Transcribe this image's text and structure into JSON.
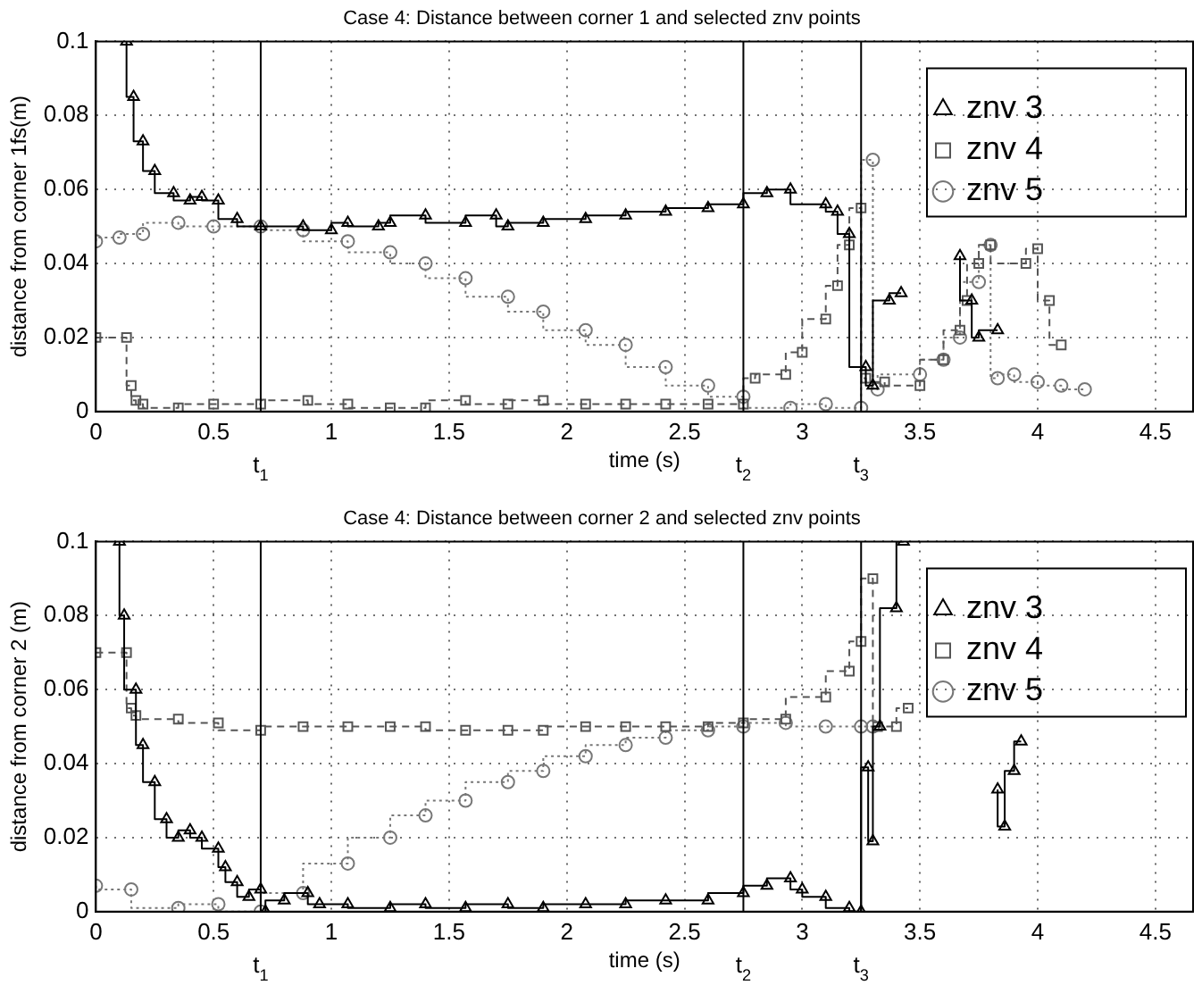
{
  "chart_data": [
    {
      "type": "step",
      "title": "Case 4: Distance between corner 1 and selected znv points",
      "xlabel": "time (s)",
      "ylabel": "distance from corner 1fs(m)",
      "xlim": [
        0,
        4.66
      ],
      "xticks": [
        0,
        0.5,
        1,
        1.5,
        2,
        2.5,
        3,
        3.5,
        4,
        4.5
      ],
      "ylim": [
        0,
        0.1
      ],
      "yticks": [
        0,
        0.02,
        0.04,
        0.06,
        0.08,
        0.1
      ],
      "grid": true,
      "legend": "top right",
      "ref_lines": [
        {
          "axis": "x",
          "value": 0.7,
          "label": "t$_{1}$",
          "color": "#000000"
        },
        {
          "axis": "x",
          "value": 2.75,
          "label": "t$_{2}$",
          "color": "#000000"
        },
        {
          "axis": "x",
          "value": 3.25,
          "label": "t$_{3}$",
          "color": "#000000"
        }
      ],
      "series": [
        {
          "name": "znv 3",
          "color": "#000000",
          "marker": "triangle",
          "line_style": "solid",
          "x": [
            0.13,
            0.16,
            0.2,
            0.25,
            0.33,
            0.4,
            0.45,
            0.52,
            0.6,
            0.7,
            0.88,
            1.0,
            1.07,
            1.2,
            1.25,
            1.4,
            1.57,
            1.7,
            1.75,
            1.9,
            2.08,
            2.25,
            2.42,
            2.6,
            2.75,
            2.85,
            2.95,
            3.1,
            3.15,
            3.2,
            3.27,
            3.3,
            3.37,
            3.42,
            3.45,
            3.67,
            3.72,
            3.75,
            3.83
          ],
          "values": [
            0.1,
            0.085,
            0.073,
            0.065,
            0.059,
            0.057,
            0.058,
            0.057,
            0.052,
            0.05,
            0.05,
            0.049,
            0.051,
            0.05,
            0.051,
            0.053,
            0.051,
            0.053,
            0.05,
            0.051,
            0.052,
            0.053,
            0.054,
            0.055,
            0.056,
            0.059,
            0.06,
            0.056,
            0.054,
            0.048,
            0.012,
            0.007,
            0.03,
            0.032,
            null,
            0.042,
            0.03,
            0.02,
            0.022
          ]
        },
        {
          "name": "znv 4",
          "color": "#555555",
          "marker": "square",
          "line_style": "dashed",
          "x": [
            0,
            0.13,
            0.15,
            0.17,
            0.2,
            0.35,
            0.5,
            0.7,
            0.9,
            1.07,
            1.25,
            1.4,
            1.57,
            1.75,
            1.9,
            2.08,
            2.25,
            2.42,
            2.6,
            2.75,
            2.8,
            2.93,
            3.0,
            3.1,
            3.15,
            3.2,
            3.25,
            3.27,
            3.35,
            3.5,
            3.6,
            3.67,
            3.7,
            3.75,
            3.8,
            3.95,
            4.0,
            4.05,
            4.1
          ],
          "values": [
            0.02,
            0.02,
            0.007,
            0.003,
            0.002,
            0.001,
            0.002,
            0.002,
            0.003,
            0.002,
            0.001,
            0.001,
            0.003,
            0.002,
            0.003,
            0.002,
            0.002,
            0.002,
            0.002,
            0.002,
            0.009,
            0.01,
            0.016,
            0.025,
            0.034,
            0.045,
            0.055,
            0.009,
            0.008,
            0.007,
            0.014,
            0.022,
            0.03,
            0.04,
            0.045,
            0.04,
            0.044,
            0.03,
            0.018
          ]
        },
        {
          "name": "znv 5",
          "color": "#777777",
          "marker": "circle",
          "line_style": "dotted",
          "x": [
            0,
            0.1,
            0.2,
            0.35,
            0.5,
            0.7,
            0.88,
            1.07,
            1.25,
            1.4,
            1.57,
            1.75,
            1.9,
            2.08,
            2.25,
            2.42,
            2.6,
            2.75,
            2.95,
            3.1,
            3.25,
            3.3,
            3.32,
            3.5,
            3.6,
            3.67,
            3.75,
            3.8,
            3.83,
            3.9,
            4.0,
            4.1,
            4.2
          ],
          "values": [
            0.046,
            0.047,
            0.048,
            0.051,
            0.05,
            0.05,
            0.049,
            0.046,
            0.043,
            0.04,
            0.036,
            0.031,
            0.027,
            0.022,
            0.018,
            0.012,
            0.007,
            0.004,
            0.001,
            0.002,
            0.001,
            0.068,
            0.006,
            0.01,
            0.014,
            0.02,
            0.035,
            0.045,
            0.009,
            0.01,
            0.008,
            0.007,
            0.006
          ]
        }
      ]
    },
    {
      "type": "step",
      "title": "Case 4: Distance between corner 2 and selected znv points",
      "xlabel": "time (s)",
      "ylabel": "distance from corner 2 (m)",
      "xlim": [
        0,
        4.66
      ],
      "xticks": [
        0,
        0.5,
        1,
        1.5,
        2,
        2.5,
        3,
        3.5,
        4,
        4.5
      ],
      "ylim": [
        0,
        0.1
      ],
      "yticks": [
        0,
        0.02,
        0.04,
        0.06,
        0.08,
        0.1
      ],
      "grid": true,
      "legend": "top right",
      "ref_lines": [
        {
          "axis": "x",
          "value": 0.7,
          "label": "t$_{1}$",
          "color": "#000000"
        },
        {
          "axis": "x",
          "value": 2.75,
          "label": "t$_{2}$",
          "color": "#000000"
        },
        {
          "axis": "x",
          "value": 3.25,
          "label": "t$_{3}$",
          "color": "#000000"
        }
      ],
      "series": [
        {
          "name": "znv 3",
          "color": "#000000",
          "marker": "triangle",
          "line_style": "solid",
          "x": [
            0.1,
            0.12,
            0.17,
            0.2,
            0.25,
            0.3,
            0.35,
            0.4,
            0.45,
            0.52,
            0.55,
            0.6,
            0.65,
            0.7,
            0.72,
            0.8,
            0.9,
            0.95,
            1.07,
            1.25,
            1.4,
            1.57,
            1.75,
            1.9,
            2.08,
            2.25,
            2.42,
            2.6,
            2.75,
            2.85,
            2.95,
            3.0,
            3.1,
            3.2,
            3.25,
            3.28,
            3.3,
            3.33,
            3.4,
            3.43,
            3.46,
            3.83,
            3.86,
            3.9,
            3.93
          ],
          "values": [
            0.1,
            0.08,
            0.06,
            0.045,
            0.035,
            0.025,
            0.02,
            0.022,
            0.02,
            0.017,
            0.012,
            0.008,
            0.004,
            0.006,
            0.0,
            0.003,
            0.005,
            0.002,
            0.002,
            0.001,
            0.002,
            0.001,
            0.002,
            0.001,
            0.002,
            0.002,
            0.003,
            0.003,
            0.005,
            0.007,
            0.009,
            0.006,
            0.004,
            0.001,
            0.0,
            0.039,
            0.019,
            0.05,
            0.082,
            0.1,
            null,
            0.033,
            0.023,
            0.038,
            0.046
          ]
        },
        {
          "name": "znv 4",
          "color": "#555555",
          "marker": "square",
          "line_style": "dashed",
          "x": [
            0,
            0.13,
            0.15,
            0.17,
            0.35,
            0.52,
            0.7,
            0.88,
            1.07,
            1.25,
            1.4,
            1.57,
            1.75,
            1.9,
            2.08,
            2.25,
            2.42,
            2.6,
            2.75,
            2.93,
            3.1,
            3.2,
            3.25,
            3.3,
            3.32,
            3.4,
            3.45
          ],
          "values": [
            0.07,
            0.07,
            0.055,
            0.053,
            0.052,
            0.051,
            0.049,
            0.05,
            0.05,
            0.05,
            0.05,
            0.049,
            0.049,
            0.049,
            0.05,
            0.05,
            0.05,
            0.05,
            0.051,
            0.052,
            0.058,
            0.065,
            0.073,
            0.09,
            0.05,
            0.05,
            0.055
          ]
        },
        {
          "name": "znv 5",
          "color": "#777777",
          "marker": "circle",
          "line_style": "dotted",
          "x": [
            0,
            0.15,
            0.35,
            0.52,
            0.7,
            0.88,
            1.07,
            1.25,
            1.4,
            1.57,
            1.75,
            1.9,
            2.08,
            2.25,
            2.42,
            2.6,
            2.75,
            2.93,
            3.1,
            3.25,
            3.3
          ],
          "values": [
            0.007,
            0.006,
            0.001,
            0.002,
            0.0,
            0.005,
            0.013,
            0.02,
            0.026,
            0.03,
            0.035,
            0.038,
            0.042,
            0.045,
            0.047,
            0.049,
            0.05,
            0.051,
            0.05,
            0.05,
            0.05
          ]
        }
      ]
    }
  ]
}
